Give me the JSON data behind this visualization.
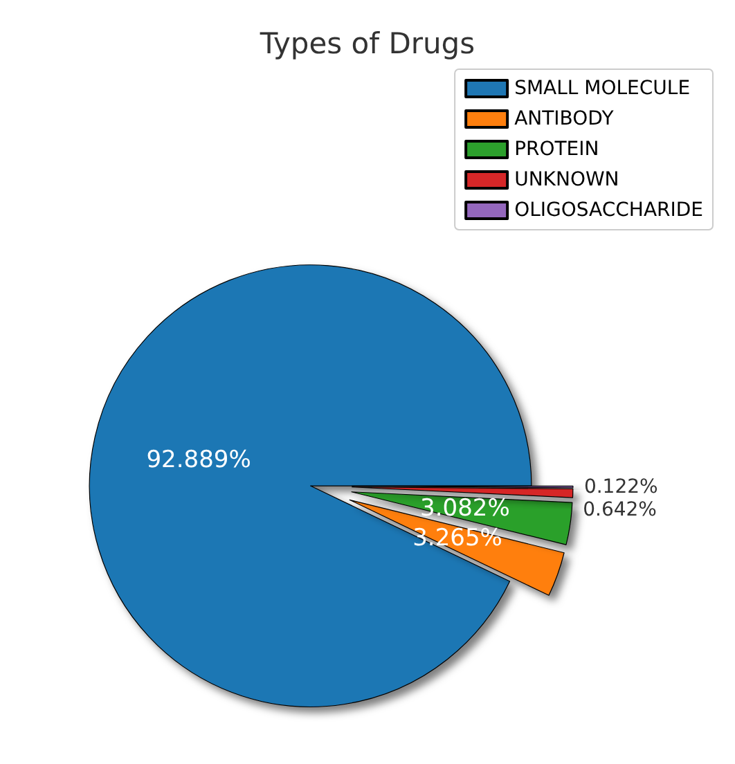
{
  "chart_data": {
    "type": "pie",
    "title": "Types of Drugs",
    "categories": [
      "SMALL MOLECULE",
      "ANTIBODY",
      "PROTEIN",
      "UNKNOWN",
      "OLIGOSACCHARIDE"
    ],
    "values": [
      92.889,
      3.265,
      3.082,
      0.642,
      0.122
    ],
    "value_labels": [
      "92.889%",
      "3.265%",
      "3.082%",
      "0.642%",
      "0.122%"
    ],
    "colors": [
      "#1f77b4",
      "#ff7f0e",
      "#2ca02c",
      "#d62728",
      "#9467bd"
    ],
    "legend": "top right"
  }
}
